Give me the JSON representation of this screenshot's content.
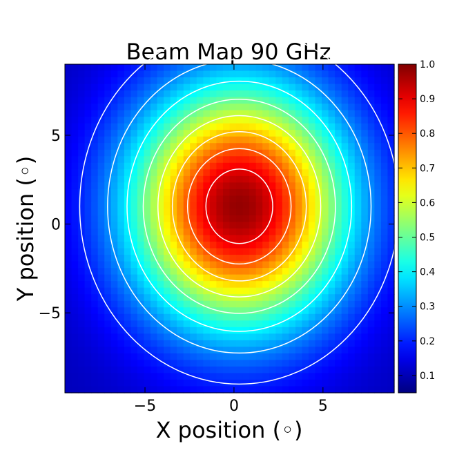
{
  "chart_data": {
    "type": "heatmap",
    "title": "Beam Map 90 GHz",
    "xlabel": "X position ($^\\circ$)",
    "ylabel": "Y position ($^\\circ$)",
    "xlabel_display": "X position (◦)",
    "ylabel_display": "Y position (◦)",
    "xlim": [
      -9.5,
      9.0
    ],
    "ylim": [
      -9.5,
      9.0
    ],
    "xticks": [
      -5,
      0,
      5
    ],
    "xtick_labels": [
      "−5",
      "0",
      "5"
    ],
    "yticks": [
      -5,
      0,
      5
    ],
    "ytick_labels": [
      "−5",
      "0",
      "5"
    ],
    "grid": false,
    "colormap": "jet",
    "colorbar": {
      "vmin": 0.05,
      "vmax": 1.0,
      "ticks": [
        0.1,
        0.2,
        0.3,
        0.4,
        0.5,
        0.6,
        0.7,
        0.8,
        0.9,
        1.0
      ],
      "tick_labels": [
        "0.1",
        "0.2",
        "0.3",
        "0.4",
        "0.5",
        "0.6",
        "0.7",
        "0.8",
        "0.9",
        "1.0"
      ]
    },
    "beam_model": {
      "center_x": 0.3,
      "center_y": 1.0,
      "sigma_x": 4.3,
      "sigma_y": 4.8,
      "peak": 0.98,
      "floor": 0.1
    },
    "contour_levels": [
      0.2,
      0.3,
      0.4,
      0.5,
      0.6,
      0.7,
      0.8,
      0.9
    ],
    "contour_color": "#ffffff"
  }
}
